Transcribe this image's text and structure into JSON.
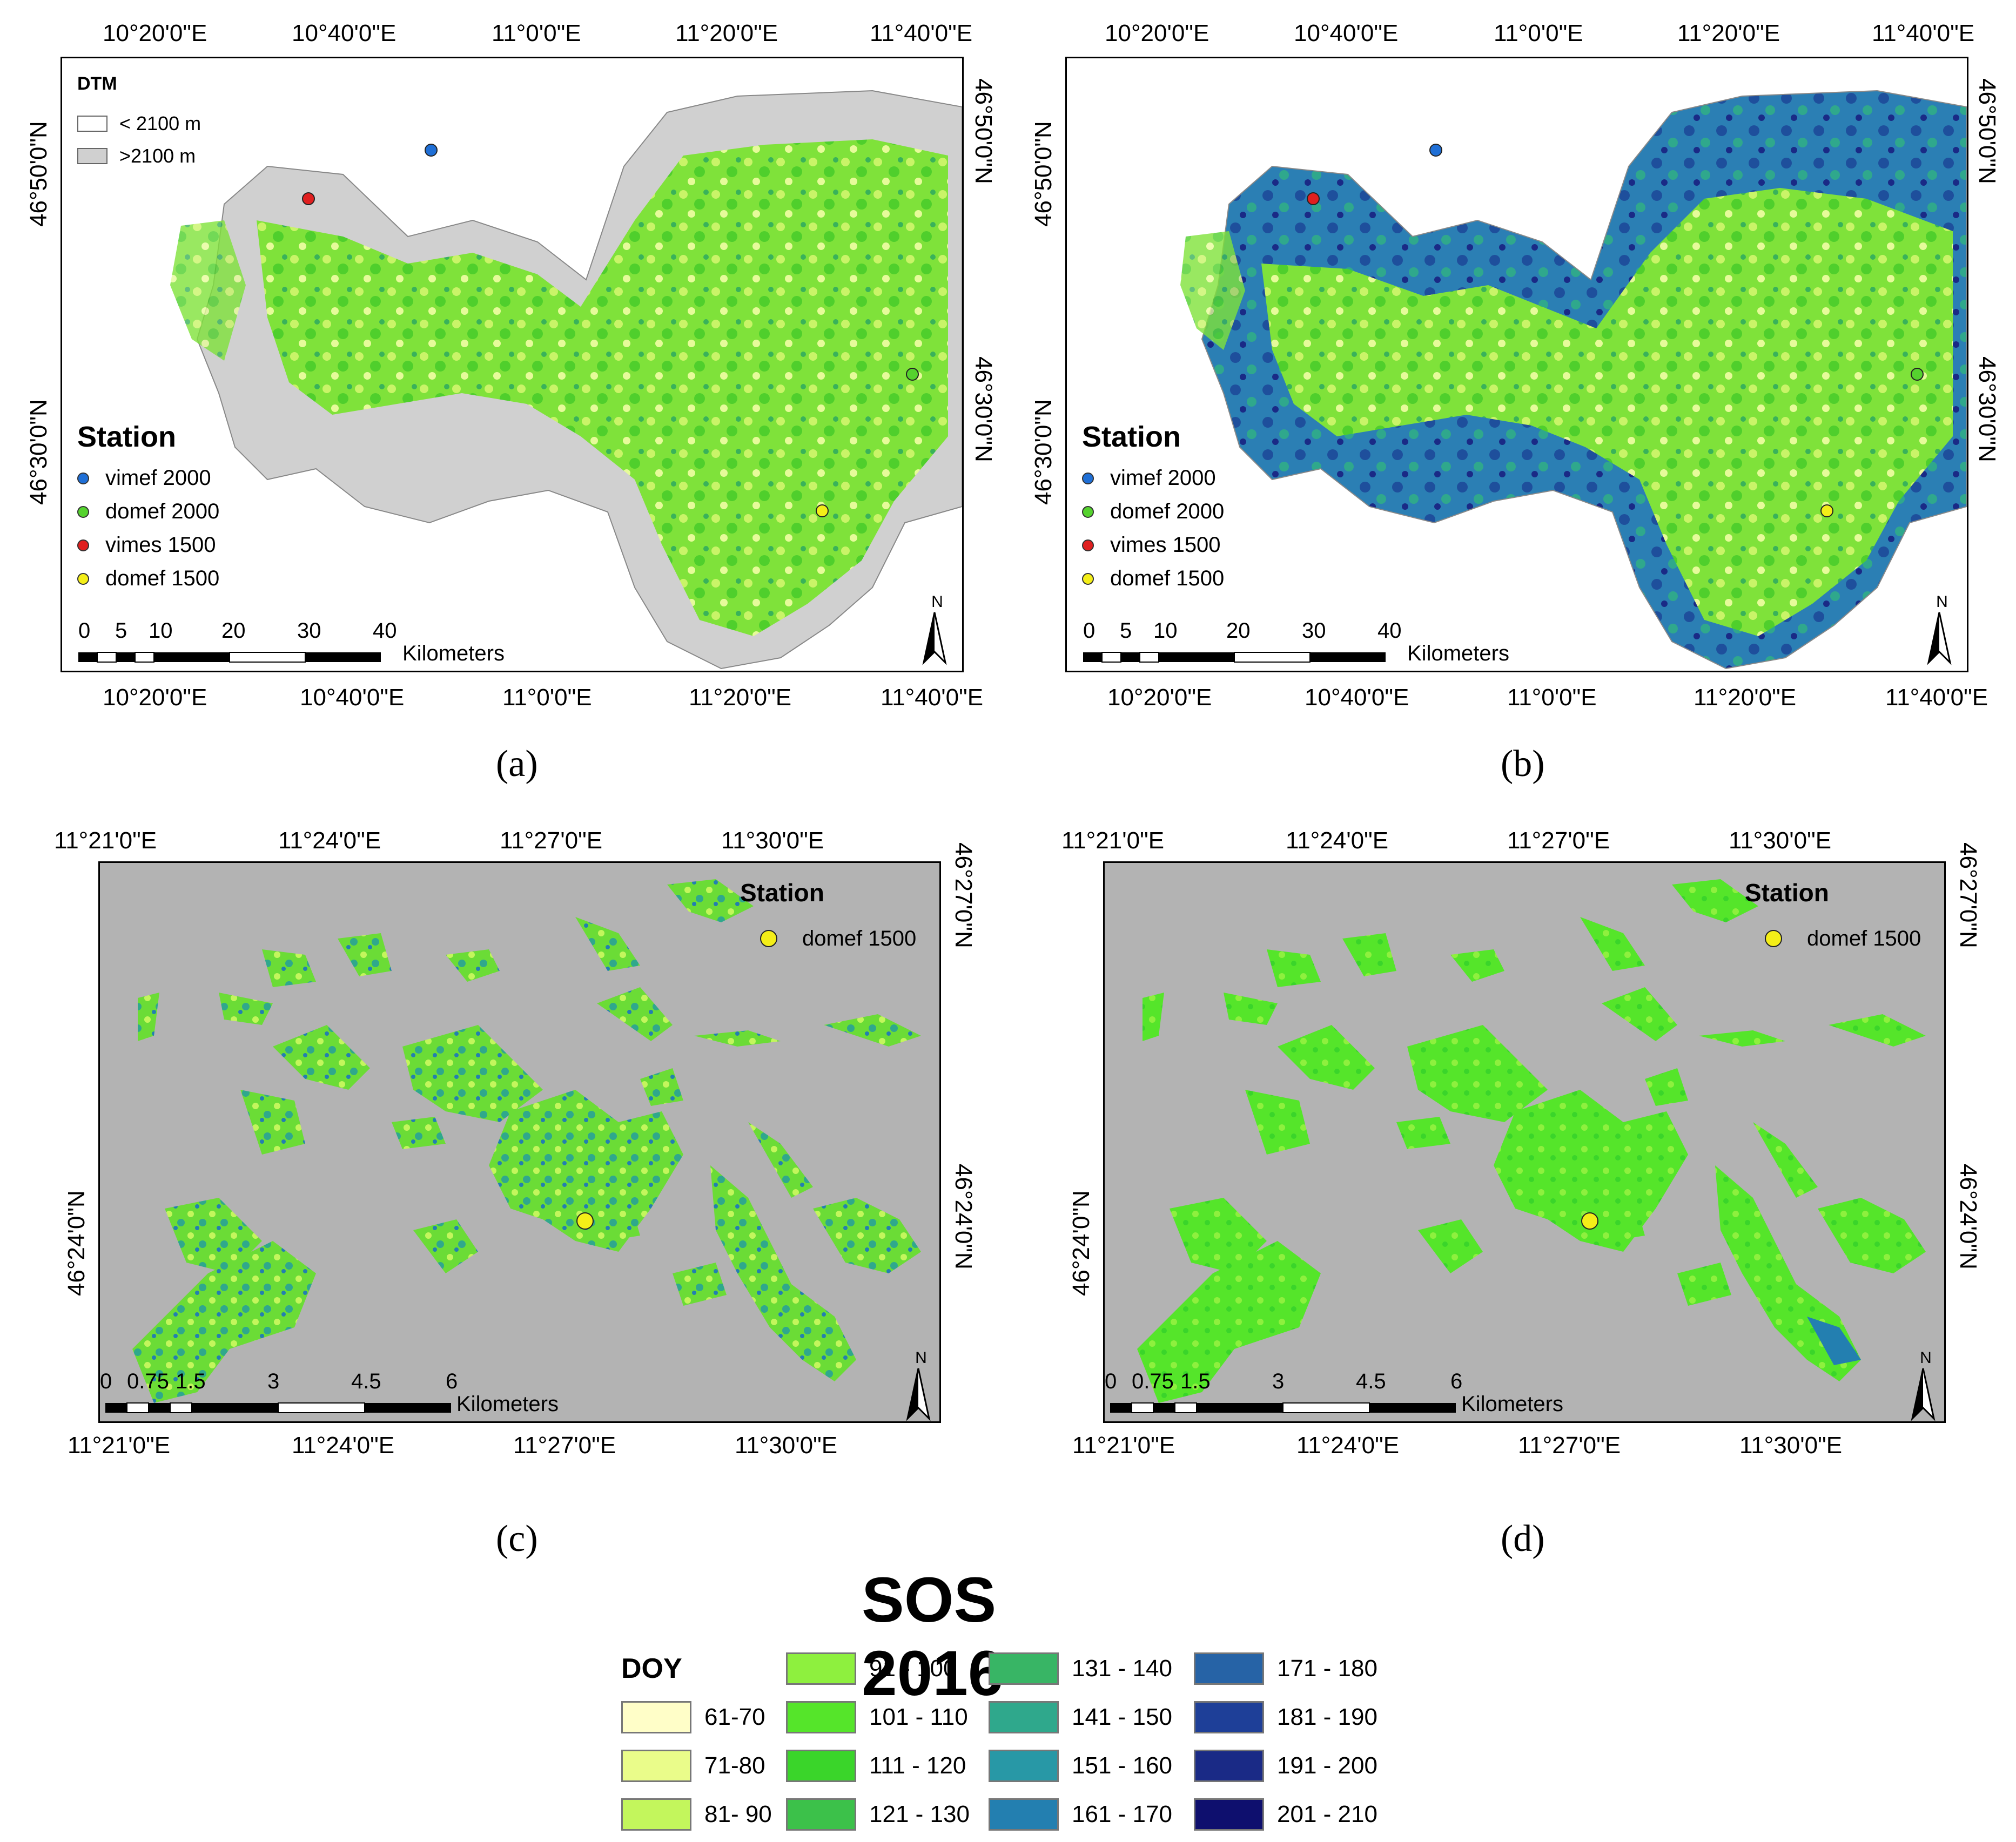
{
  "colors": {
    "station_vimef_2000": "#1f6fd6",
    "station_domef_2000": "#55d22e",
    "station_vimes_1500": "#e01f1f",
    "station_domef_1500": "#f4ee18",
    "dtm_low": "#ffffff",
    "dtm_high": "#d0d0d0",
    "background_gray": "#b3b3b3"
  },
  "top_panels": {
    "lon_ticks_top": [
      "10°20'0\"E",
      "10°40'0\"E",
      "11°0'0\"E",
      "11°20'0\"E",
      "11°40'0\"E"
    ],
    "lon_ticks_bottom": [
      "10°20'0\"E",
      "10°40'0\"E",
      "11°0'0\"E",
      "11°20'0\"E",
      "11°40'0\"E"
    ],
    "lat_ticks": [
      "46°50'0\"N",
      "46°30'0\"N"
    ],
    "station_legend_title": "Station",
    "stations": [
      {
        "label": "vimef 2000",
        "color": "#1f6fd6"
      },
      {
        "label": "domef 2000",
        "color": "#55d22e"
      },
      {
        "label": "vimes 1500",
        "color": "#e01f1f"
      },
      {
        "label": "domef 1500",
        "color": "#f4ee18"
      }
    ],
    "dtm_title": "DTM",
    "dtm_items": [
      {
        "label": "< 2100 m",
        "color": "#ffffff"
      },
      {
        "label": ">2100 m",
        "color": "#d0d0d0"
      }
    ],
    "scale_labels": [
      "0",
      "5",
      "10",
      "20",
      "30",
      "40"
    ],
    "scale_unit": "Kilometers",
    "north_label": "N"
  },
  "bottom_panels": {
    "lon_ticks": [
      "11°21'0\"E",
      "11°24'0\"E",
      "11°27'0\"E",
      "11°30'0\"E"
    ],
    "lat_ticks": [
      "46°27'0\"N",
      "46°24'0\"N"
    ],
    "station_legend_title": "Station",
    "station_label": "domef 1500",
    "station_color": "#f4ee18",
    "scale_labels": [
      "0",
      "0.75",
      "1.5",
      "3",
      "4.5",
      "6"
    ],
    "scale_unit": "Kilometers",
    "north_label": "N"
  },
  "captions": {
    "a": "(a)",
    "b": "(b)",
    "c": "(c)",
    "d": "(d)"
  },
  "sos_legend": {
    "title": "SOS 2016",
    "doy_label": "DOY",
    "classes": [
      {
        "label": "61-70",
        "color": "#fffec8"
      },
      {
        "label": "71-80",
        "color": "#eafc8a"
      },
      {
        "label": "81- 90",
        "color": "#c3f65c"
      },
      {
        "label": "91 - 100",
        "color": "#8ef03e"
      },
      {
        "label": "101 - 110",
        "color": "#55e52a"
      },
      {
        "label": "111 - 120",
        "color": "#3ad52a"
      },
      {
        "label": "121 - 130",
        "color": "#3cc14a"
      },
      {
        "label": "131 - 140",
        "color": "#38b565"
      },
      {
        "label": "141 - 150",
        "color": "#2fa88c"
      },
      {
        "label": "151 - 160",
        "color": "#2898a6"
      },
      {
        "label": "161 - 170",
        "color": "#237fb0"
      },
      {
        "label": "171 - 180",
        "color": "#2663a6"
      },
      {
        "label": "181 - 190",
        "color": "#1e3f98"
      },
      {
        "label": "191 - 200",
        "color": "#1a2a86"
      },
      {
        "label": "201 - 210",
        "color": "#0e0f6e"
      }
    ]
  }
}
